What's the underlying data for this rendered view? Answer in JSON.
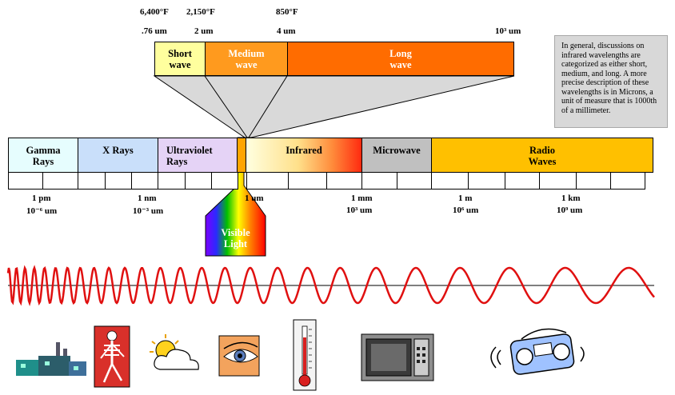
{
  "temperatures": {
    "t1": "6,400°F",
    "t2": "2,150°F",
    "t3": "850°F"
  },
  "ir_scale": {
    "s1": ".76 um",
    "s2": "2 um",
    "s3": "4 um",
    "s4": "10³ um"
  },
  "ir_bands": [
    {
      "line1": "Short",
      "line2": "wave",
      "color": "#ffff9e"
    },
    {
      "line1": "Medium",
      "line2": "wave",
      "color": "#ff9a1e"
    },
    {
      "line1": "Long",
      "line2": "wave",
      "color": "#ff6c00"
    }
  ],
  "note": {
    "text": "In general, discussions on infrared wavelengths are categorized as either short, medium, and long.  A more precise description of these wavelengths is in Microns, a unit of measure that is 1000th of a millimeter."
  },
  "spectrum": [
    {
      "line1": "Gamma",
      "line2": "Rays",
      "color": "#e6fdfe"
    },
    {
      "line1": "X Rays",
      "line2": "",
      "color": "#c9dffa"
    },
    {
      "line1": "Ultraviolet",
      "line2": "Rays",
      "color": "#e5d3f6"
    },
    {
      "line1": "Infrared",
      "line2": "",
      "color": "#ffd24a"
    },
    {
      "line1": "Microwave",
      "line2": "",
      "color": "#c0c0c0"
    },
    {
      "line1": "Radio",
      "line2": "Waves",
      "color": "#ffc000"
    }
  ],
  "visible": {
    "line1": "Visible",
    "line2": "Light"
  },
  "scale": [
    {
      "a": "1 pm",
      "b": "10⁻⁶ um"
    },
    {
      "a": "1 nm",
      "b": "10⁻³ um"
    },
    {
      "a": "1 um",
      "b": ""
    },
    {
      "a": "1 mm",
      "b": "10³ um"
    },
    {
      "a": "1 m",
      "b": "10⁶ um"
    },
    {
      "a": "1 km",
      "b": "10⁹ um"
    }
  ],
  "icons": [
    "power-plant-icon",
    "skeleton-icon",
    "sun-cloud-icon",
    "eye-icon",
    "thermometer-icon",
    "microwave-oven-icon",
    "radio-icon"
  ]
}
